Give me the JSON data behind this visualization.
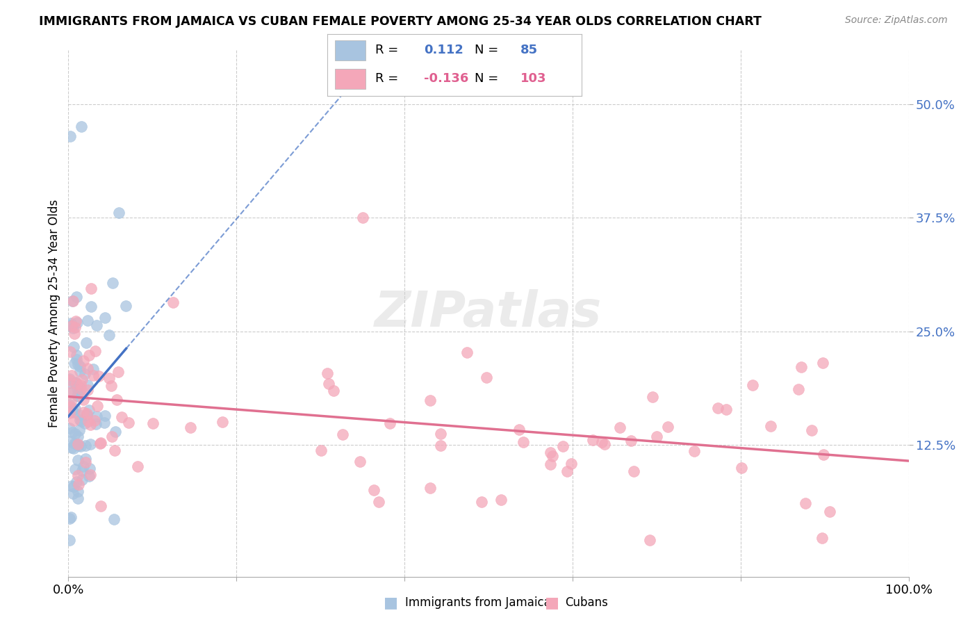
{
  "title": "IMMIGRANTS FROM JAMAICA VS CUBAN FEMALE POVERTY AMONG 25-34 YEAR OLDS CORRELATION CHART",
  "source": "Source: ZipAtlas.com",
  "ylabel": "Female Poverty Among 25-34 Year Olds",
  "xlim": [
    0,
    1.0
  ],
  "ylim": [
    -0.02,
    0.56
  ],
  "ytick_positions": [
    0.125,
    0.25,
    0.375,
    0.5
  ],
  "ytick_labels": [
    "12.5%",
    "25.0%",
    "37.5%",
    "50.0%"
  ],
  "jamaica_color": "#a8c4e0",
  "cuban_color": "#f4a7b9",
  "jamaica_line_color": "#4472c4",
  "cuban_line_color": "#e07090",
  "background_color": "#ffffff",
  "grid_color": "#cccccc",
  "legend_jamaica_R": "0.112",
  "legend_jamaica_N": "85",
  "legend_cuban_R": "-0.136",
  "legend_cuban_N": "103",
  "watermark": "ZIPatlas"
}
